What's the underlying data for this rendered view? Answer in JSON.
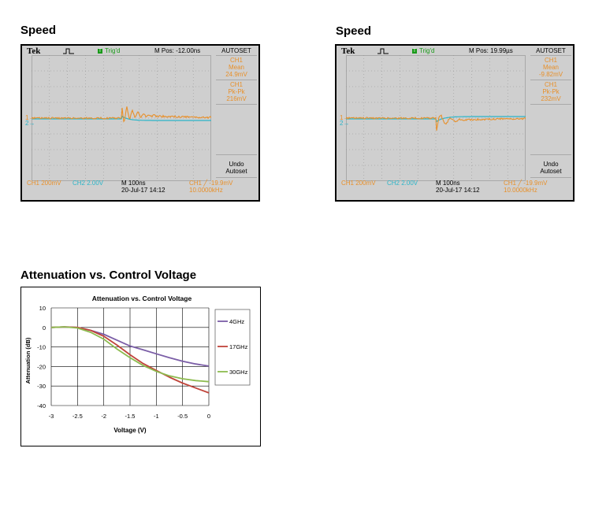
{
  "sections": {
    "speed_1_title": "Speed",
    "speed_2_title": "Speed",
    "attenuation_title": "Attenuation vs. Control Voltage"
  },
  "scope1": {
    "brand": "Tek",
    "trig_label": "Trig'd",
    "trig_box": "T",
    "mpos": "M Pos: -12.00ns",
    "autoset": "AUTOSET",
    "meas1": [
      "CH1",
      "Mean",
      "24.9mV"
    ],
    "meas2": [
      "CH1",
      "Pk-Pk",
      "216mV"
    ],
    "undo": [
      "Undo",
      "Autoset"
    ],
    "ch1": "CH1  200mV",
    "ch2": "CH2  2.00V",
    "timebase": "M 100ns",
    "date": "20-Jul-17 14:12",
    "trigger": "CH1 ╱ -19.9mV",
    "freq": "10.0000kHz",
    "ch1_marker": "1→",
    "ch2_marker": "2→"
  },
  "scope2": {
    "brand": "Tek",
    "trig_label": "Trig'd",
    "trig_box": "T",
    "mpos": "M Pos: 19.99µs",
    "autoset": "AUTOSET",
    "meas1": [
      "CH1",
      "Mean",
      "-9.82mV"
    ],
    "meas2": [
      "CH1",
      "Pk-Pk",
      "232mV"
    ],
    "undo": [
      "Undo",
      "Autoset"
    ],
    "ch1": "CH1  200mV",
    "ch2": "CH2  2.00V",
    "timebase": "M 100ns",
    "date": "20-Jul-17 14:12",
    "trigger": "CH1 ╱ -19.9mV",
    "freq": "10.0000kHz",
    "ch1_marker": "1→",
    "ch2_marker": "2→"
  },
  "colors": {
    "ch1": "#e8902a",
    "ch2": "#2bb5c8",
    "s4": "#7b5ea7",
    "s17": "#c0443a",
    "s30": "#8dbb4f"
  },
  "chart_data": {
    "type": "line",
    "title": "Attenuation vs. Control Voltage",
    "xlabel": "Voltage (V)",
    "ylabel": "Attenuation (dB)",
    "xlim": [
      -3,
      0
    ],
    "ylim": [
      -40,
      10
    ],
    "xticks": [
      "-3",
      "-2.5",
      "-2",
      "-1.5",
      "-1",
      "-0.5",
      "0"
    ],
    "yticks": [
      "10",
      "0",
      "-10",
      "-20",
      "-30",
      "-40"
    ],
    "grid": true,
    "legend": "right",
    "series": [
      {
        "name": "4GHz",
        "x": [
          -3,
          -2.75,
          -2.5,
          -2.25,
          -2,
          -1.75,
          -1.5,
          -1.25,
          -1,
          -0.75,
          -0.5,
          -0.25,
          0
        ],
        "y": [
          0,
          0.3,
          0,
          -1.5,
          -3.5,
          -6.5,
          -9.5,
          -11.5,
          -13.5,
          -15.5,
          -17.3,
          -18.7,
          -19.8
        ]
      },
      {
        "name": "17GHz",
        "x": [
          -3,
          -2.75,
          -2.5,
          -2.25,
          -2,
          -1.75,
          -1.5,
          -1.25,
          -1,
          -0.75,
          -0.5,
          -0.25,
          0
        ],
        "y": [
          0,
          0.3,
          0,
          -1.5,
          -4.5,
          -9,
          -14,
          -18.5,
          -22,
          -25.5,
          -28.5,
          -31,
          -33.5
        ]
      },
      {
        "name": "30GHz",
        "x": [
          -3,
          -2.75,
          -2.5,
          -2.25,
          -2,
          -1.75,
          -1.5,
          -1.25,
          -1,
          -0.75,
          -0.5,
          -0.25,
          0
        ],
        "y": [
          0,
          0.3,
          -0.3,
          -2.5,
          -6,
          -11,
          -15.5,
          -19.5,
          -22.5,
          -24.8,
          -26.3,
          -27.2,
          -27.8
        ]
      }
    ]
  }
}
